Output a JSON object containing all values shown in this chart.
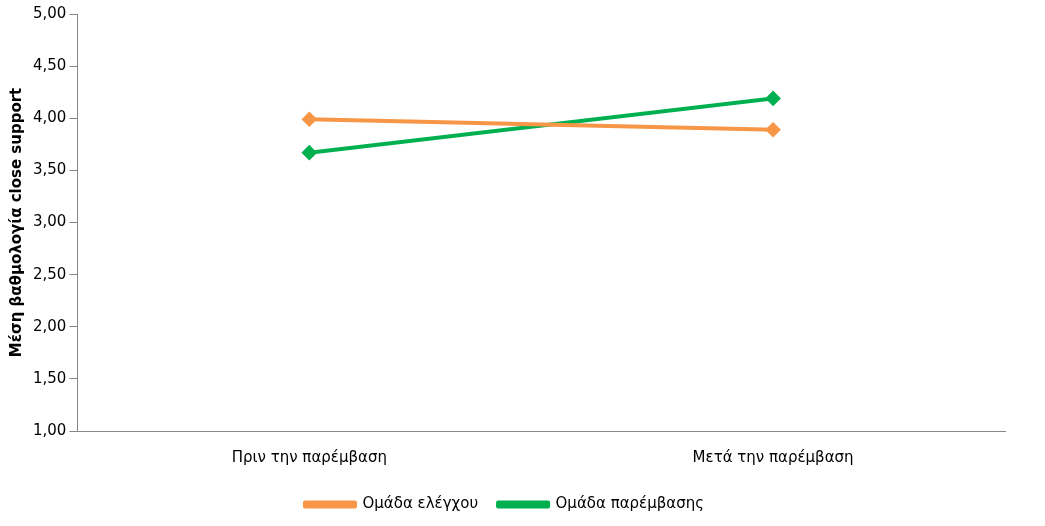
{
  "chart_data": {
    "type": "line",
    "ylabel": "Μέση βαθμολογία close support",
    "categories": [
      "Πριν την παρέμβαση",
      "Μετά την παρέμβαση"
    ],
    "series": [
      {
        "name": "Ομάδα ελέγχου",
        "color": "#f79646",
        "values": [
          3.99,
          3.89
        ]
      },
      {
        "name": "Ομάδα παρέμβασης",
        "color": "#00b050",
        "values": [
          3.67,
          4.19
        ]
      }
    ],
    "ylim": [
      1,
      5
    ],
    "yticks": [
      {
        "value": 1,
        "label": "1,00"
      },
      {
        "value": 1.5,
        "label": "1,50"
      },
      {
        "value": 2,
        "label": "2,00"
      },
      {
        "value": 2.5,
        "label": "2,50"
      },
      {
        "value": 3,
        "label": "3,00"
      },
      {
        "value": 3.5,
        "label": "3,50"
      },
      {
        "value": 4,
        "label": "4,00"
      },
      {
        "value": 4.5,
        "label": "4,50"
      },
      {
        "value": 5,
        "label": "5,00"
      }
    ],
    "grid": false,
    "legend": "bottom",
    "marker": "diamond",
    "line_style": "solid"
  }
}
